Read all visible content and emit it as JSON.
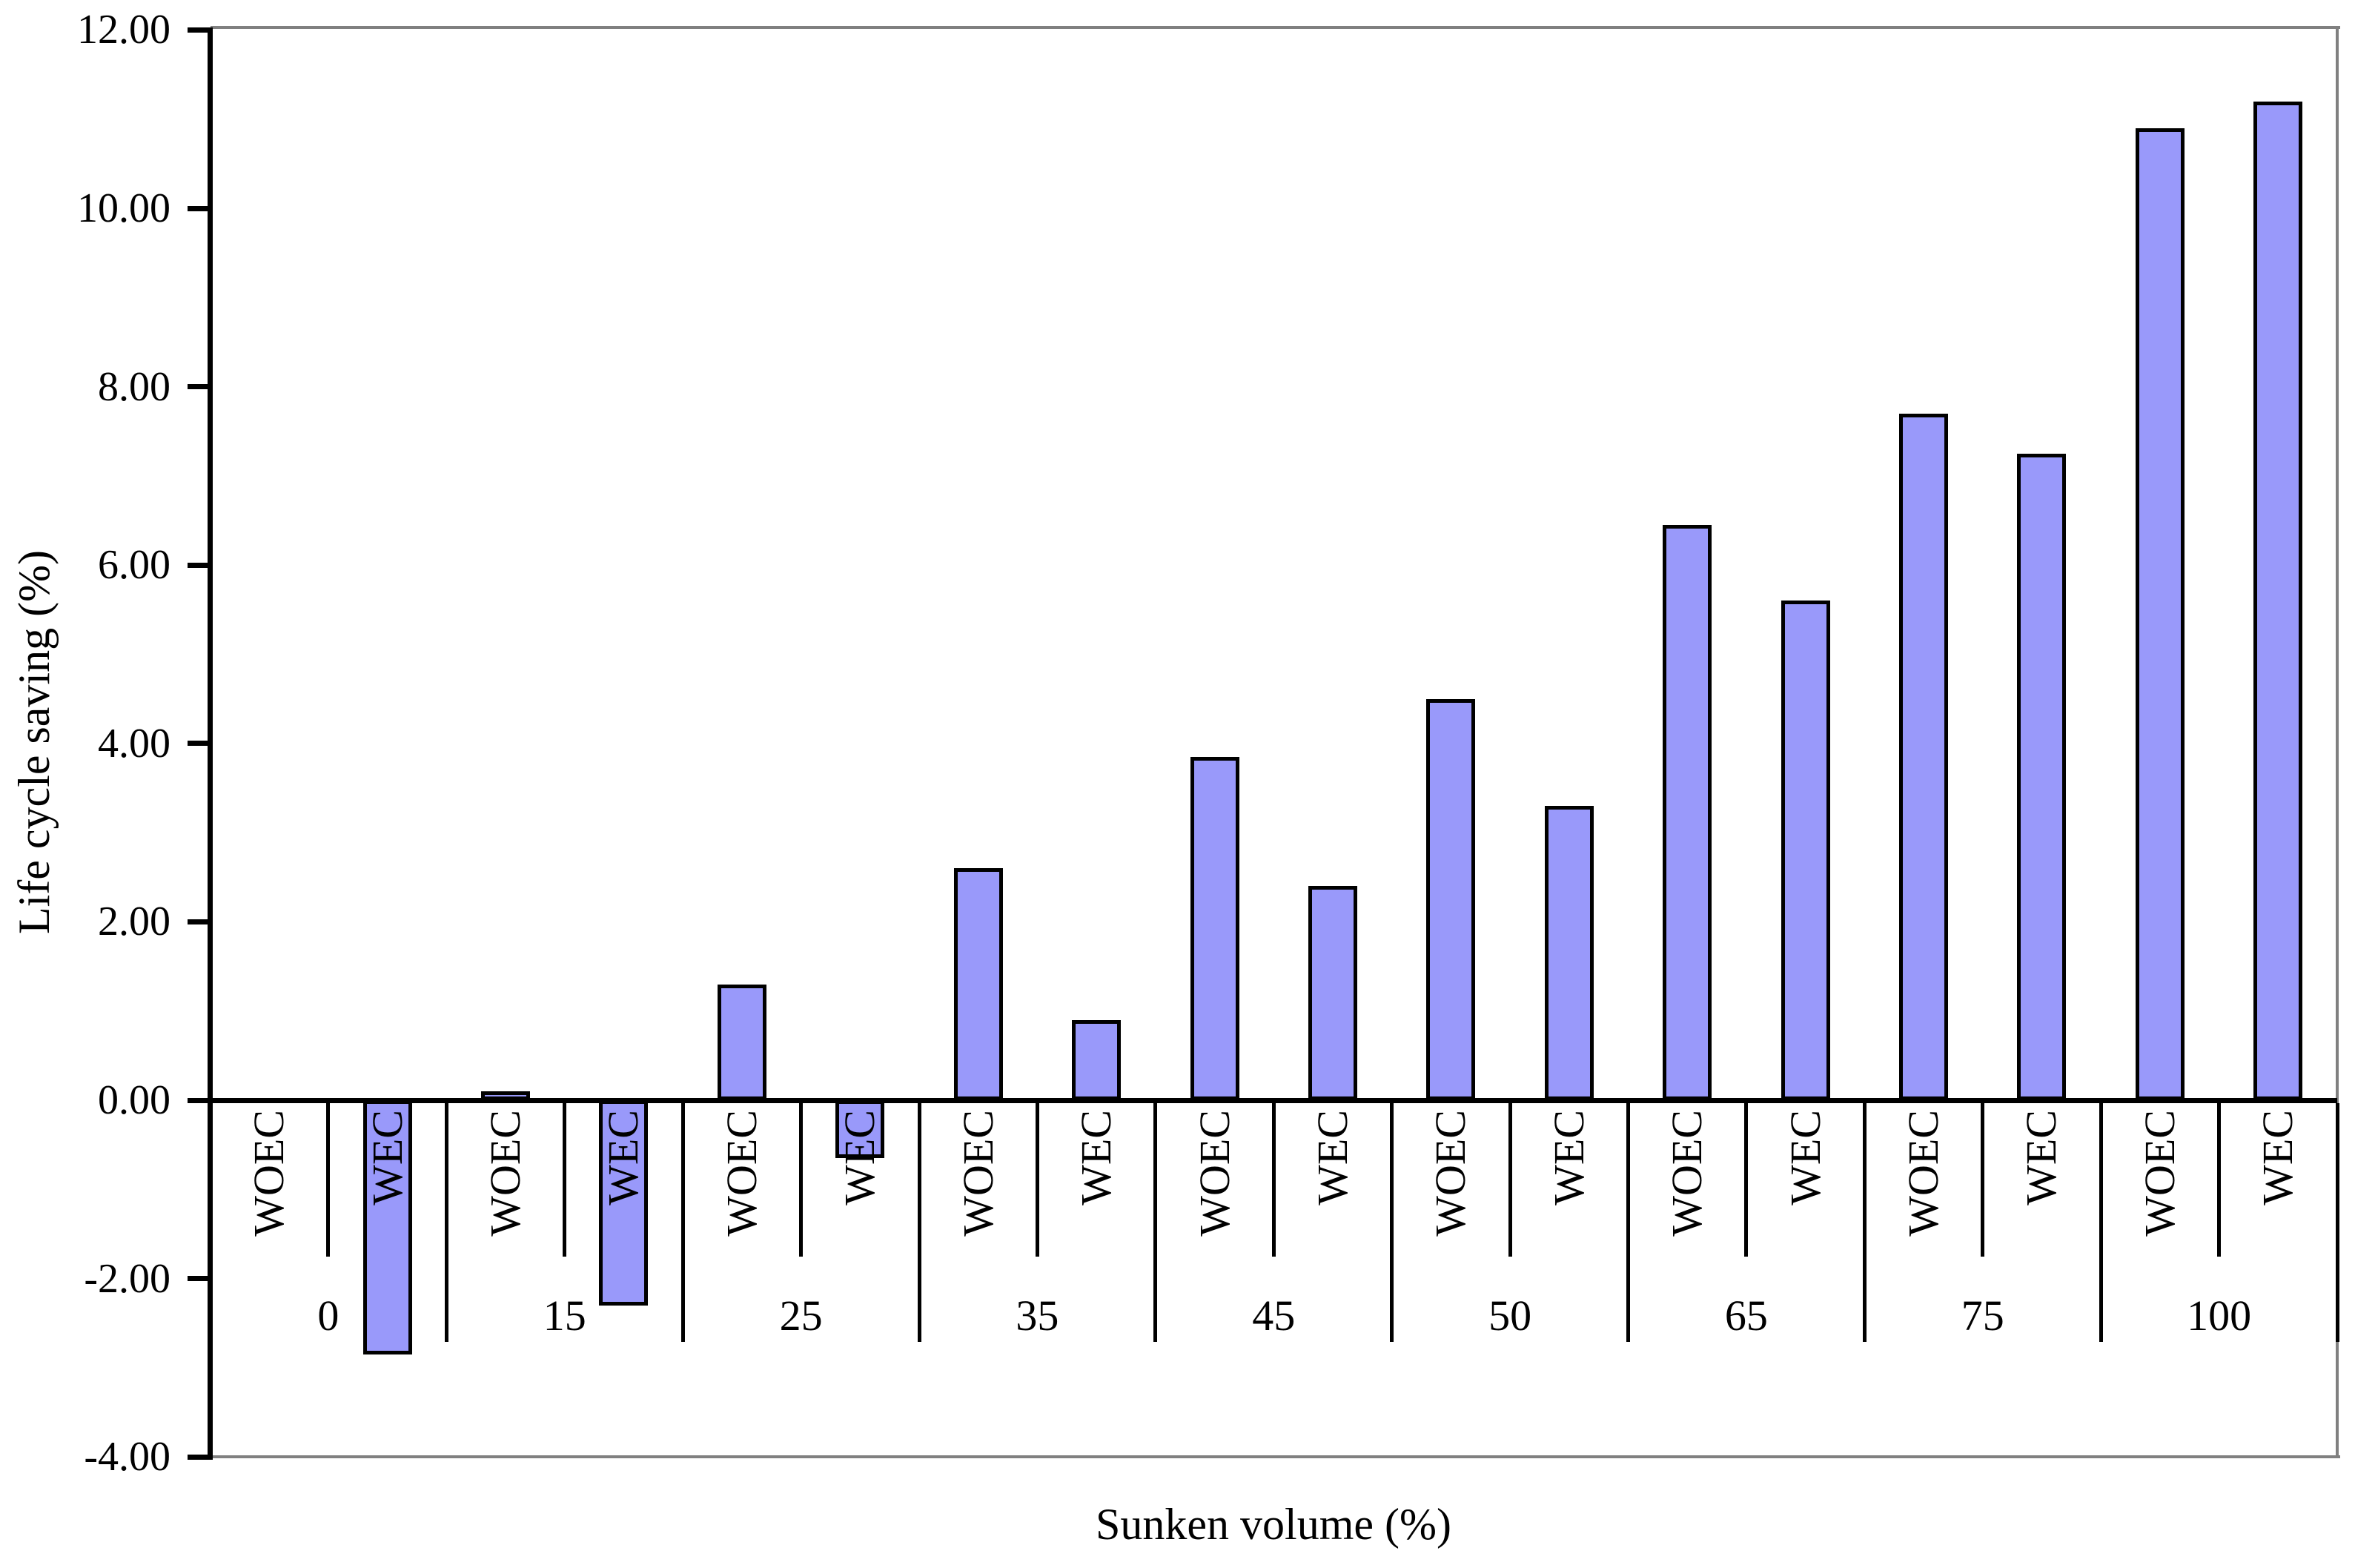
{
  "chart_data": {
    "type": "bar",
    "title": "",
    "xlabel": "Sunken volume (%)",
    "ylabel": "Life cycle saving (%)",
    "categories": [
      "0",
      "15",
      "25",
      "35",
      "45",
      "50",
      "65",
      "75",
      "100"
    ],
    "series": [
      {
        "name": "WOEC",
        "values": [
          0.0,
          0.1,
          1.3,
          2.6,
          3.85,
          4.5,
          6.45,
          7.7,
          10.9
        ]
      },
      {
        "name": "WEC",
        "values": [
          -2.85,
          -2.3,
          -0.65,
          0.9,
          2.4,
          3.3,
          5.6,
          7.25,
          11.2
        ]
      }
    ],
    "y_ticks": [
      {
        "label": "12.00",
        "value": 12
      },
      {
        "label": "10.00",
        "value": 10
      },
      {
        "label": "8.00",
        "value": 8
      },
      {
        "label": "6.00",
        "value": 6
      },
      {
        "label": "4.00",
        "value": 4
      },
      {
        "label": "2.00",
        "value": 2
      },
      {
        "label": "0.00",
        "value": 0
      },
      {
        "label": "-2.00",
        "value": -2
      },
      {
        "label": "-4.00",
        "value": -4
      }
    ],
    "ylim": [
      -4,
      12
    ],
    "grid": false,
    "legend": "none",
    "bar_color": "#9999FA",
    "bar_border_color": "#000000",
    "axis_color": "#000000",
    "plot_border_color": "#808080",
    "background_color": "#FFFFFF"
  }
}
